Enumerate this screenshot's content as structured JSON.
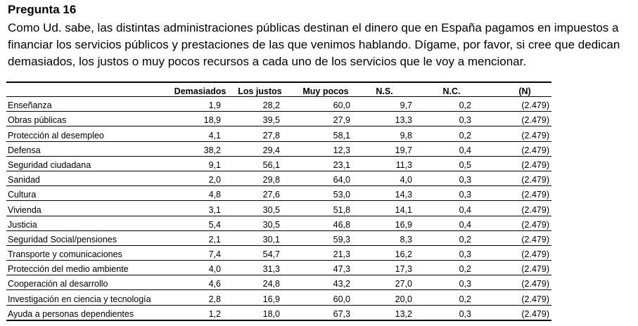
{
  "question_title": "Pregunta 16",
  "question_text": "Como Ud. sabe, las distintas administraciones públicas destinan el dinero que en España pagamos en impuestos a financiar los servicios públicos y prestaciones de las que venimos hablando. Dígame, por favor, si cree que dedican demasiados, los justos o muy pocos recursos a cada uno de los servicios que le voy a mencionar.",
  "table": {
    "headers": [
      "",
      "Demasiados",
      "Los justos",
      "Muy pocos",
      "N.S.",
      "N.C.",
      "(N)"
    ],
    "rows": [
      {
        "label": "Enseñanza",
        "demasiados": "1,9",
        "justos": "28,2",
        "pocos": "60,0",
        "ns": "9,7",
        "nc": "0,2",
        "n": "(2.479)"
      },
      {
        "label": "Obras públicas",
        "demasiados": "18,9",
        "justos": "39,5",
        "pocos": "27,9",
        "ns": "13,3",
        "nc": "0,3",
        "n": "(2.479)"
      },
      {
        "label": "Protección al desempleo",
        "demasiados": "4,1",
        "justos": "27,8",
        "pocos": "58,1",
        "ns": "9,8",
        "nc": "0,2",
        "n": "(2.479)"
      },
      {
        "label": "Defensa",
        "demasiados": "38,2",
        "justos": "29,4",
        "pocos": "12,3",
        "ns": "19,7",
        "nc": "0,4",
        "n": "(2.479)"
      },
      {
        "label": "Seguridad ciudadana",
        "demasiados": "9,1",
        "justos": "56,1",
        "pocos": "23,1",
        "ns": "11,3",
        "nc": "0,5",
        "n": "(2.479)"
      },
      {
        "label": "Sanidad",
        "demasiados": "2,0",
        "justos": "29,8",
        "pocos": "64,0",
        "ns": "4,0",
        "nc": "0,3",
        "n": "(2.479)"
      },
      {
        "label": "Cultura",
        "demasiados": "4,8",
        "justos": "27,6",
        "pocos": "53,0",
        "ns": "14,3",
        "nc": "0,3",
        "n": "(2.479)"
      },
      {
        "label": "Vivienda",
        "demasiados": "3,1",
        "justos": "30,5",
        "pocos": "51,8",
        "ns": "14,1",
        "nc": "0,4",
        "n": "(2.479)"
      },
      {
        "label": "Justicia",
        "demasiados": "5,4",
        "justos": "30,5",
        "pocos": "46,8",
        "ns": "16,9",
        "nc": "0,4",
        "n": "(2.479)"
      },
      {
        "label": "Seguridad Social/pensiones",
        "demasiados": "2,1",
        "justos": "30,1",
        "pocos": "59,3",
        "ns": "8,3",
        "nc": "0,2",
        "n": "(2.479)"
      },
      {
        "label": "Transporte y comunicaciones",
        "demasiados": "7,4",
        "justos": "54,7",
        "pocos": "21,3",
        "ns": "16,2",
        "nc": "0,3",
        "n": "(2.479)"
      },
      {
        "label": "Protección del medio ambiente",
        "demasiados": "4,0",
        "justos": "31,3",
        "pocos": "47,3",
        "ns": "17,3",
        "nc": "0,2",
        "n": "(2.479)"
      },
      {
        "label": "Cooperación al desarrollo",
        "demasiados": "4,6",
        "justos": "24,8",
        "pocos": "43,2",
        "ns": "27,0",
        "nc": "0,3",
        "n": "(2.479)"
      },
      {
        "label": "Investigación en ciencia y tecnología",
        "demasiados": "2,8",
        "justos": "16,9",
        "pocos": "60,0",
        "ns": "20,0",
        "nc": "0,2",
        "n": "(2.479)"
      },
      {
        "label": "Ayuda a personas dependientes",
        "demasiados": "1,2",
        "justos": "18,0",
        "pocos": "67,3",
        "ns": "13,2",
        "nc": "0,3",
        "n": "(2.479)"
      }
    ]
  }
}
